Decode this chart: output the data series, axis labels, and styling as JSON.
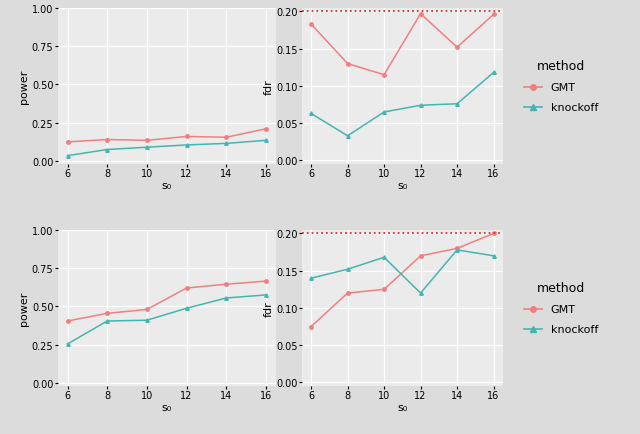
{
  "x": [
    6,
    8,
    10,
    12,
    14,
    16
  ],
  "top_left_GMT": [
    0.125,
    0.14,
    0.135,
    0.16,
    0.155,
    0.21
  ],
  "top_left_knockoff": [
    0.035,
    0.075,
    0.09,
    0.105,
    0.115,
    0.135
  ],
  "top_right_GMT": [
    0.183,
    0.13,
    0.115,
    0.197,
    0.152,
    0.196
  ],
  "top_right_knockoff": [
    0.063,
    0.033,
    0.065,
    0.074,
    0.076,
    0.118
  ],
  "bot_left_GMT": [
    0.405,
    0.455,
    0.48,
    0.62,
    0.645,
    0.665
  ],
  "bot_left_knockoff": [
    0.255,
    0.405,
    0.41,
    0.488,
    0.555,
    0.575
  ],
  "bot_right_GMT": [
    0.075,
    0.12,
    0.125,
    0.17,
    0.18,
    0.2
  ],
  "bot_right_knockoff": [
    0.14,
    0.152,
    0.168,
    0.12,
    0.178,
    0.17
  ],
  "gmt_color": "#F08080",
  "knockoff_color": "#45B5B0",
  "hline_color": "#CC3333",
  "bg_color": "#EBEBEB",
  "grid_color": "#FFFFFF",
  "outer_bg": "#DCDCDC",
  "xlabel": "s₀",
  "ylabel_power": "power",
  "ylabel_fdr": "fdr",
  "legend_title": "method",
  "hline_y": 0.2,
  "power_ylim": [
    -0.02,
    1.0
  ],
  "power_yticks": [
    0.0,
    0.25,
    0.5,
    0.75,
    1.0
  ],
  "fdr_ylim": [
    -0.005,
    0.205
  ],
  "fdr_yticks": [
    0.0,
    0.05,
    0.1,
    0.15,
    0.2
  ],
  "xticks": [
    6,
    8,
    10,
    12,
    14,
    16
  ]
}
